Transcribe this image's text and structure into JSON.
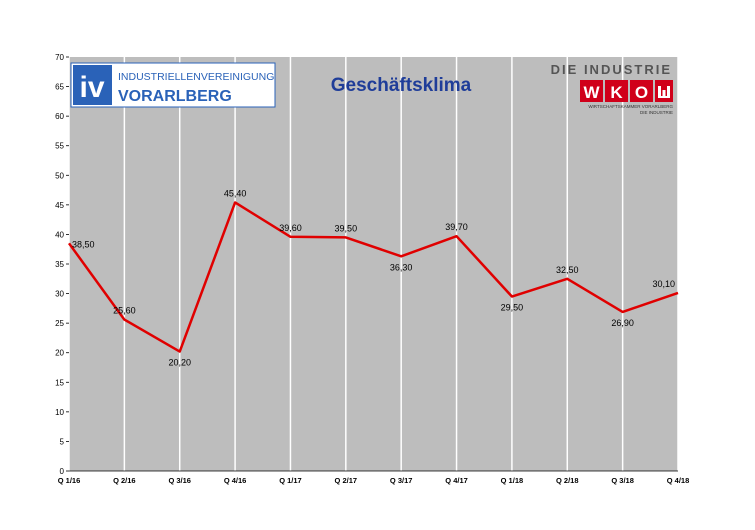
{
  "chart_data": {
    "type": "line",
    "title": "Geschäftsklima",
    "categories": [
      "Q 1/16",
      "Q 2/16",
      "Q 3/16",
      "Q 4/16",
      "Q 1/17",
      "Q 2/17",
      "Q 3/17",
      "Q 4/17",
      "Q 1/18",
      "Q 2/18",
      "Q 3/18",
      "Q 4/18"
    ],
    "series": [
      {
        "values": [
          38.5,
          25.6,
          20.2,
          45.4,
          39.6,
          39.5,
          36.3,
          39.7,
          29.5,
          32.5,
          26.9,
          30.1
        ],
        "labels": [
          "38,50",
          "25,60",
          "20,20",
          "45,40",
          "39,60",
          "39,50",
          "36,30",
          "39,70",
          "29,50",
          "32,50",
          "26,90",
          "30,10"
        ],
        "color": "#e00000"
      }
    ],
    "ylim": [
      0,
      70
    ],
    "yticks": [
      0,
      5,
      10,
      15,
      20,
      25,
      30,
      35,
      40,
      45,
      50,
      55,
      60,
      65,
      70
    ],
    "grid": true,
    "plot_background": "#bdbdbd",
    "gridline_color": "#ffffff"
  },
  "logos": {
    "iv": {
      "mark": "iv",
      "line1": "INDUSTRIELLENVEREINIGUNG",
      "line2": "VORARLBERG",
      "color": "#2a62b8"
    },
    "wko": {
      "top": "DIE INDUSTRIE",
      "letters": [
        "W",
        "K",
        "O"
      ],
      "sub1": "WIRTSCHAFTSKAMMER VORARLBERG",
      "sub2": "DIE INDUSTRIE",
      "color": "#d0001a"
    }
  }
}
